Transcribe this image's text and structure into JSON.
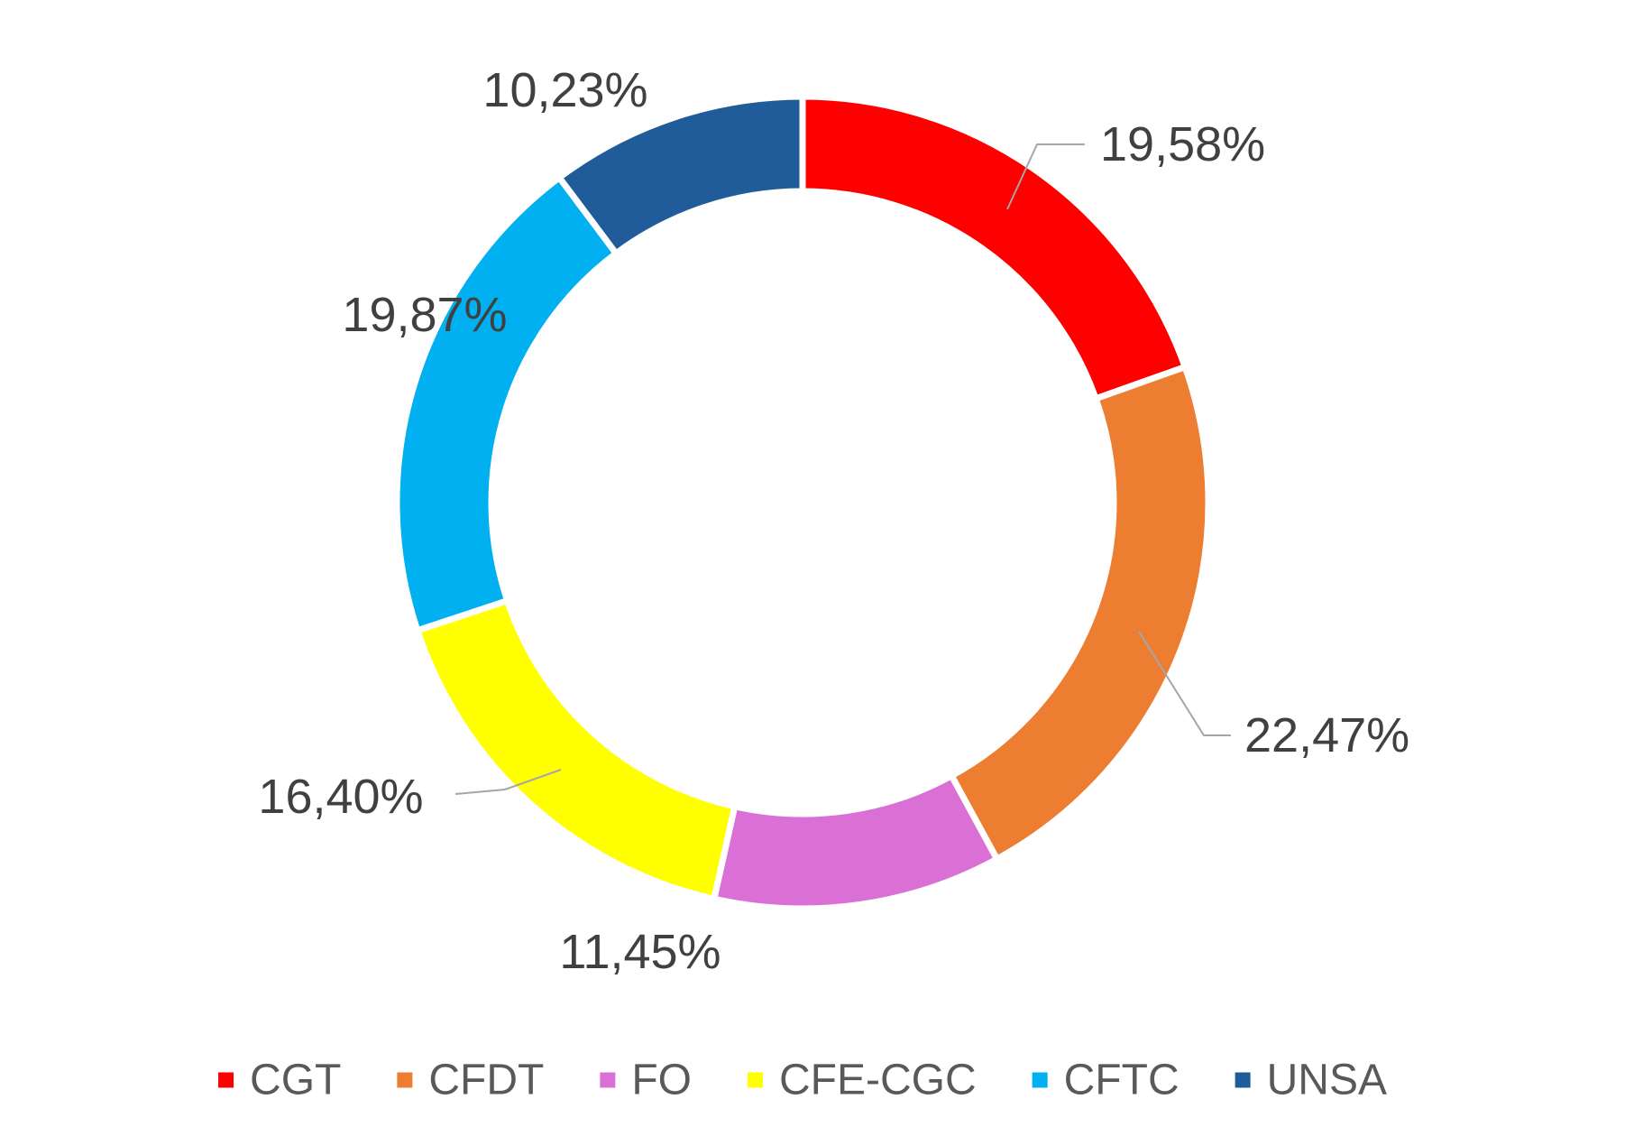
{
  "chart_data": {
    "type": "pie",
    "variant": "donut",
    "title": "",
    "legend_position": "bottom",
    "categories": [
      "CGT",
      "CFDT",
      "FO",
      "CFE-CGC",
      "CFTC",
      "UNSA"
    ],
    "values": [
      19.58,
      22.47,
      11.45,
      16.4,
      19.87,
      10.23
    ],
    "value_labels": [
      "19,58%",
      "22,47%",
      "11,45%",
      "16,40%",
      "19,87%",
      "10,23%"
    ],
    "colors": [
      "#ff0000",
      "#ed7d31",
      "#da70d6",
      "#ffff00",
      "#00b0f0",
      "#1f5c99"
    ]
  }
}
